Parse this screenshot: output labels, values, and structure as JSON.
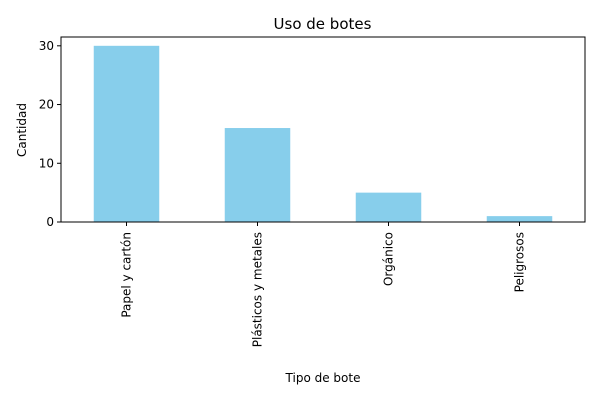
{
  "chart_data": {
    "type": "bar",
    "title": "Uso de botes",
    "xlabel": "Tipo de bote",
    "ylabel": "Cantidad",
    "categories": [
      "Papel y cartón",
      "Plásticos y metales",
      "Orgánico",
      "Peligrosos"
    ],
    "values": [
      30,
      16,
      5,
      1
    ],
    "ylim": [
      0,
      31.5
    ],
    "yticks": [
      0,
      10,
      20,
      30
    ],
    "bar_color": "#87CEEB",
    "grid": false,
    "legend": "none"
  }
}
